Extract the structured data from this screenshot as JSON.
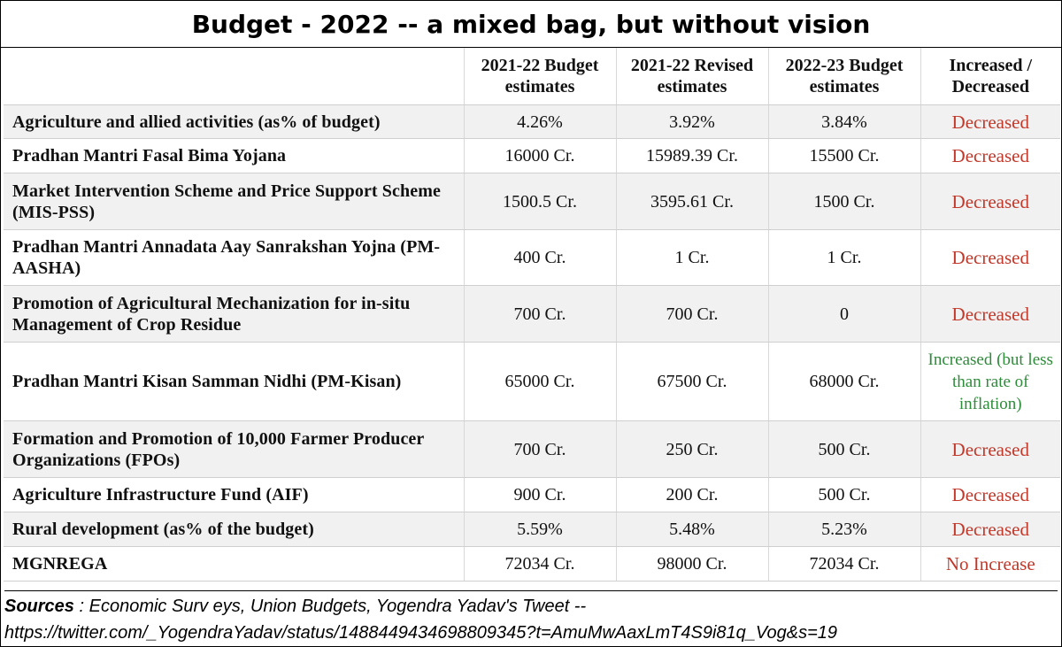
{
  "title": "Budget - 2022 -- a mixed bag, but without vision",
  "headers": [
    "",
    "2021-22 Budget estimates",
    "2021-22 Revised estimates",
    "2022-23 Budget estimates",
    "Increased / Decreased"
  ],
  "rows": [
    {
      "label": "Agriculture and allied activities (as% of budget)",
      "be2122": "4.26%",
      "re2122": "3.92%",
      "be2223": "3.84%",
      "status": "Decreased",
      "status_color": "#c0392b"
    },
    {
      "label": "Pradhan Mantri Fasal Bima Yojana",
      "be2122": "16000 Cr.",
      "re2122": "15989.39 Cr.",
      "be2223": "15500 Cr.",
      "status": "Decreased",
      "status_color": "#c0392b"
    },
    {
      "label": "Market Intervention Scheme and Price Support Scheme (MIS-PSS)",
      "be2122": "1500.5 Cr.",
      "re2122": "3595.61 Cr.",
      "be2223": "1500 Cr.",
      "status": "Decreased",
      "status_color": "#c0392b"
    },
    {
      "label": "Pradhan Mantri Annadata Aay Sanrakshan Yojna (PM-AASHA)",
      "be2122": "400 Cr.",
      "re2122": "1 Cr.",
      "be2223": "1 Cr.",
      "status": "Decreased",
      "status_color": "#c0392b"
    },
    {
      "label": "Promotion of Agricultural Mechanization for in-situ Management of Crop Residue",
      "be2122": "700 Cr.",
      "re2122": "700 Cr.",
      "be2223": "0",
      "status": "Decreased",
      "status_color": "#c0392b"
    },
    {
      "label": "Pradhan Mantri Kisan Samman Nidhi (PM-Kisan)",
      "be2122": "65000 Cr.",
      "re2122": "67500 Cr.",
      "be2223": "68000 Cr.",
      "status": "Increased (but less than rate of inflation)",
      "status_color": "#2e8b3a"
    },
    {
      "label": "Formation and Promotion of 10,000 Farmer Producer Organizations (FPOs)",
      "be2122": "700 Cr.",
      "re2122": "250 Cr.",
      "be2223": "500 Cr.",
      "status": "Decreased",
      "status_color": "#c0392b"
    },
    {
      "label": "Agriculture Infrastructure Fund (AIF)",
      "be2122": "900 Cr.",
      "re2122": "200 Cr.",
      "be2223": "500 Cr.",
      "status": "Decreased",
      "status_color": "#c0392b"
    },
    {
      "label": "Rural development (as% of the budget)",
      "be2122": "5.59%",
      "re2122": "5.48%",
      "be2223": "5.23%",
      "status": "Decreased",
      "status_color": "#c0392b"
    },
    {
      "label": "MGNREGA",
      "be2122": "72034 Cr.",
      "re2122": "98000 Cr.",
      "be2223": "72034 Cr.",
      "status": "No Increase",
      "status_color": "#c0392b"
    }
  ],
  "sources": {
    "label": "Sources",
    "text": " : Economic Surv eys, Union Budgets, Yogendra Yadav's Tweet --",
    "url": "https://twitter.com/_YogendraYadav/status/1488449434698809345?t=AmuMwAaxLmT4S9i81q_Vog&s=19"
  }
}
